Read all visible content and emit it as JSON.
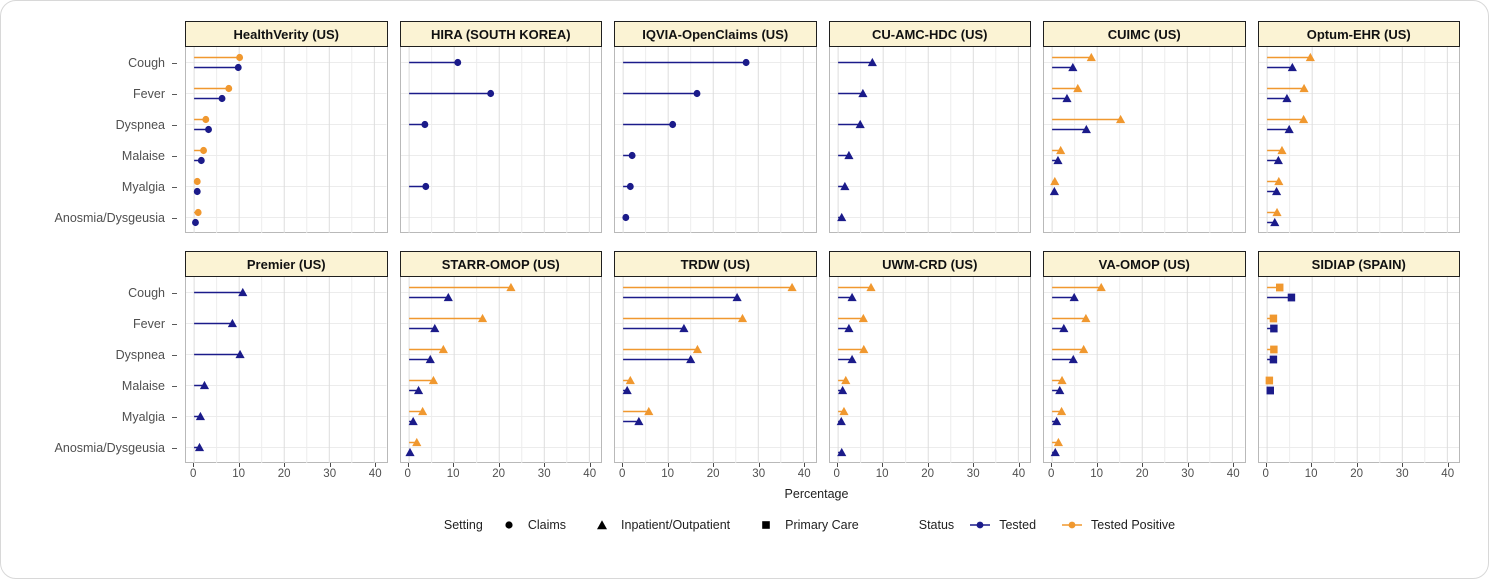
{
  "chart_data": {
    "type": "lollipop",
    "title": "",
    "xlabel": "Percentage",
    "xlim": [
      0,
      40
    ],
    "x_ticks": [
      0,
      10,
      20,
      30,
      40
    ],
    "x_minor_ticks": [
      5,
      15,
      25,
      35
    ],
    "grid": true,
    "categories": [
      "Cough",
      "Fever",
      "Dyspnea",
      "Malaise",
      "Myalgia",
      "Anosmia/Dysgeusia"
    ],
    "status_series": [
      "Tested",
      "Tested Positive"
    ],
    "colors": {
      "tested": "#1b1b8a",
      "tested_positive": "#f0982f",
      "header_fill": "#fbf3d4",
      "header_border": "#1f1f1f",
      "panel_border": "#b9b9b9",
      "grid_major": "#dcdcdc",
      "grid_minor": "#ececec",
      "axis_text": "#4f4f4f"
    },
    "panels": [
      {
        "title": "HealthVerity (US)",
        "setting": "Claims",
        "marker": "circle",
        "tested": [
          9.8,
          6.2,
          3.2,
          1.6,
          0.7,
          0.3
        ],
        "tested_positive": [
          10.1,
          7.7,
          2.6,
          2.1,
          0.7,
          0.9
        ]
      },
      {
        "title": "HIRA (SOUTH KOREA)",
        "setting": "Claims",
        "marker": "circle",
        "tested": [
          10.8,
          18.1,
          3.5,
          null,
          3.7,
          null
        ],
        "tested_positive": [
          null,
          null,
          null,
          null,
          null,
          null
        ]
      },
      {
        "title": "IQVIA-OpenClaims (US)",
        "setting": "Claims",
        "marker": "circle",
        "tested": [
          27.3,
          16.4,
          11.0,
          2.0,
          1.6,
          0.6
        ],
        "tested_positive": [
          null,
          null,
          null,
          null,
          null,
          null
        ]
      },
      {
        "title": "CU-AMC-HDC (US)",
        "setting": "Inpatient/Outpatient",
        "marker": "triangle",
        "tested": [
          7.6,
          5.5,
          4.9,
          2.4,
          1.5,
          0.8
        ],
        "tested_positive": [
          null,
          null,
          null,
          null,
          null,
          null
        ]
      },
      {
        "title": "CUIMC (US)",
        "setting": "Inpatient/Outpatient",
        "marker": "triangle",
        "tested": [
          4.6,
          3.3,
          7.6,
          1.3,
          0.5,
          null
        ],
        "tested_positive": [
          8.7,
          5.7,
          15.2,
          1.9,
          0.6,
          null
        ]
      },
      {
        "title": "Optum-EHR (US)",
        "setting": "Inpatient/Outpatient",
        "marker": "triangle",
        "tested": [
          5.6,
          4.4,
          4.9,
          2.5,
          2.1,
          1.7
        ],
        "tested_positive": [
          9.6,
          8.2,
          8.1,
          3.3,
          2.6,
          2.2
        ]
      },
      {
        "title": "Premier (US)",
        "setting": "Inpatient/Outpatient",
        "marker": "triangle",
        "tested": [
          10.8,
          8.5,
          10.2,
          2.3,
          1.4,
          1.2
        ],
        "tested_positive": [
          null,
          null,
          null,
          null,
          null,
          null
        ]
      },
      {
        "title": "STARR-OMOP (US)",
        "setting": "Inpatient/Outpatient",
        "marker": "triangle",
        "tested": [
          8.7,
          5.7,
          4.7,
          2.1,
          0.9,
          0.2
        ],
        "tested_positive": [
          22.6,
          16.3,
          7.6,
          5.4,
          3.0,
          1.7
        ]
      },
      {
        "title": "TRDW (US)",
        "setting": "Inpatient/Outpatient",
        "marker": "triangle",
        "tested": [
          25.3,
          13.5,
          15.0,
          0.9,
          3.5,
          null
        ],
        "tested_positive": [
          37.5,
          26.5,
          16.5,
          1.6,
          5.7,
          null
        ]
      },
      {
        "title": "UWM-CRD (US)",
        "setting": "Inpatient/Outpatient",
        "marker": "triangle",
        "tested": [
          3.1,
          2.4,
          3.1,
          1.0,
          0.7,
          0.8
        ],
        "tested_positive": [
          7.3,
          5.6,
          5.7,
          1.7,
          1.3,
          null
        ]
      },
      {
        "title": "VA-OMOP (US)",
        "setting": "Inpatient/Outpatient",
        "marker": "triangle",
        "tested": [
          4.9,
          2.6,
          4.7,
          1.7,
          1.0,
          0.7
        ],
        "tested_positive": [
          10.9,
          7.5,
          7.0,
          2.2,
          2.1,
          1.4
        ]
      },
      {
        "title": "SIDIAP (SPAIN)",
        "setting": "Primary Care",
        "marker": "square",
        "tested": [
          5.4,
          1.5,
          1.4,
          0.7,
          null,
          null
        ],
        "tested_positive": [
          2.8,
          1.4,
          1.5,
          0.5,
          null,
          null
        ]
      }
    ],
    "legend": {
      "setting_label": "Setting",
      "setting_items": [
        {
          "label": "Claims",
          "marker": "circle"
        },
        {
          "label": "Inpatient/Outpatient",
          "marker": "triangle"
        },
        {
          "label": "Primary Care",
          "marker": "square"
        }
      ],
      "status_label": "Status",
      "status_items": [
        {
          "label": "Tested",
          "color": "#1b1b8a"
        },
        {
          "label": "Tested Positive",
          "color": "#f0982f"
        }
      ]
    }
  }
}
